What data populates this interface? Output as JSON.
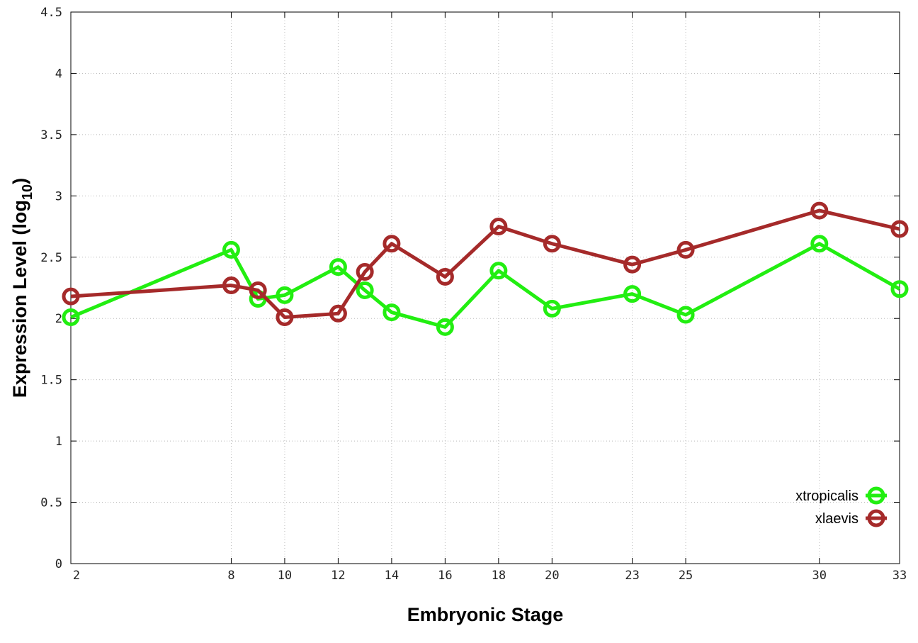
{
  "chart_data": {
    "type": "line",
    "xlabel": "Embryonic Stage",
    "ylabel": "Expression Level (log",
    "ylabel_sub": "10",
    "ylabel_close": ")",
    "ylim": [
      0,
      4.5
    ],
    "xlim": [
      2,
      33
    ],
    "yticks": [
      "0",
      "0.5",
      "1",
      "1.5",
      "2",
      "2.5",
      "3",
      "3.5",
      "4",
      "4.5"
    ],
    "xticks": [
      "2",
      "8",
      "10",
      "12",
      "14",
      "16",
      "18",
      "20",
      "23",
      "25",
      "30",
      "33"
    ],
    "grid": true,
    "legend_position": "bottom-right",
    "x": [
      2,
      8,
      9,
      10,
      12,
      13,
      14,
      16,
      18,
      20,
      23,
      25,
      30,
      33
    ],
    "series": [
      {
        "name": "xtropicalis",
        "color": "#22ee11",
        "values": [
          2.01,
          2.56,
          2.16,
          2.19,
          2.42,
          2.23,
          2.05,
          1.93,
          2.39,
          2.08,
          2.2,
          2.03,
          2.61,
          2.24
        ]
      },
      {
        "name": "xlaevis",
        "color": "#a52a2a",
        "values": [
          2.18,
          2.27,
          2.23,
          2.01,
          2.04,
          2.38,
          2.61,
          2.34,
          2.75,
          2.61,
          2.44,
          2.56,
          2.88,
          2.73
        ]
      }
    ]
  }
}
